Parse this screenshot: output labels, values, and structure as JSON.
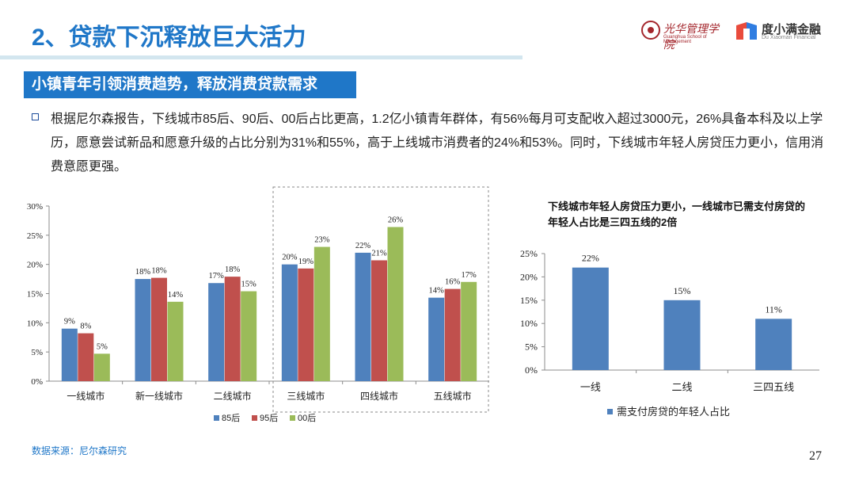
{
  "slide": {
    "title": "2、贷款下沉释放巨大活力",
    "banner": "小镇青年引领消费趋势，释放消费贷款需求",
    "paragraph": "根据尼尔森报告，下线城市85后、90后、00后占比更高，1.2亿小镇青年群体，有56%每月可支配收入超过3000元，26%具备本科及以上学历，愿意尝试新品和愿意升级的占比分别为31%和55%，高于上线城市消费者的24%和53%。同时，下线城市年轻人房贷压力更小，信用消费意愿更强。",
    "source": "数据来源：尼尔森研究",
    "page_number": "27",
    "logos": {
      "pku_cn": "光华管理学院",
      "pku_en": "Guanghua School of Management",
      "du_cn": "度小满金融",
      "du_en": "Du Xiaoman Financial"
    },
    "right_chart_subtitle": "下线城市年轻人房贷压力更小，一线城市已需支付房贷的年轻人占比是三四五线的2倍"
  },
  "colors": {
    "title": "#1f77c8",
    "banner_bg": "#1f77c8",
    "series_85": "#4f81bd",
    "series_95": "#c0504d",
    "series_00": "#9bbb59",
    "source": "#1f77c8"
  },
  "chart_data": [
    {
      "type": "bar",
      "title": "",
      "categories": [
        "一线城市",
        "新一线城市",
        "二线城市",
        "三线城市",
        "四线城市",
        "五线城市"
      ],
      "series": [
        {
          "name": "85后",
          "values": [
            9,
            17.5,
            16.8,
            20,
            22,
            14.3
          ],
          "labels": [
            "9%",
            "18%",
            "17%",
            "20%",
            "22%",
            "14%"
          ]
        },
        {
          "name": "95后",
          "values": [
            8.2,
            17.7,
            17.9,
            19.3,
            20.7,
            15.8
          ],
          "labels": [
            "8%",
            "18%",
            "18%",
            "19%",
            "21%",
            "16%"
          ]
        },
        {
          "name": "00后",
          "values": [
            4.7,
            13.6,
            15.4,
            23,
            26.4,
            17
          ],
          "labels": [
            "5%",
            "14%",
            "15%",
            "23%",
            "26%",
            "17%"
          ]
        }
      ],
      "yticks": [
        "0%",
        "5%",
        "10%",
        "15%",
        "20%",
        "25%",
        "30%"
      ],
      "ylim": [
        0,
        30
      ],
      "xlabel": "",
      "ylabel": "",
      "legend": "bottom",
      "highlight": "三线城市 to 五线城市 (dashed box)"
    },
    {
      "type": "bar",
      "title": "下线城市年轻人房贷压力更小，一线城市已需支付房贷的年轻人占比是三四五线的2倍",
      "categories": [
        "一线",
        "二线",
        "三四五线"
      ],
      "series": [
        {
          "name": "需支付房贷的年轻人占比",
          "values": [
            22,
            15,
            11
          ],
          "labels": [
            "22%",
            "15%",
            "11%"
          ]
        }
      ],
      "yticks": [
        "0%",
        "5%",
        "10%",
        "15%",
        "20%",
        "25%"
      ],
      "ylim": [
        0,
        25
      ],
      "xlabel": "",
      "ylabel": "",
      "legend": "bottom"
    }
  ]
}
